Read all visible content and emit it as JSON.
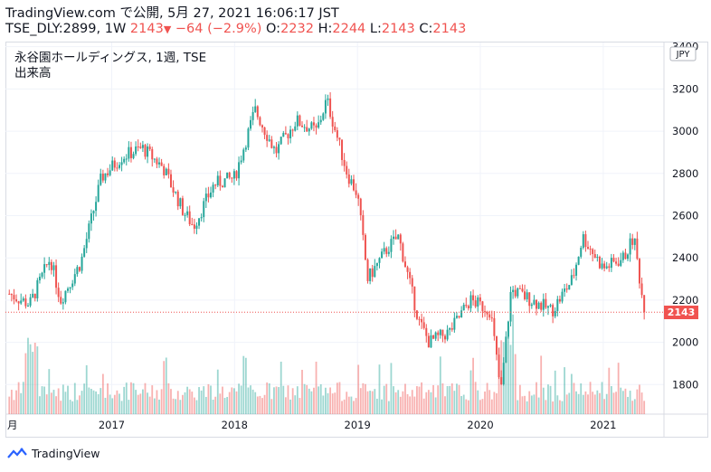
{
  "header": {
    "line1": "TradingView.com で公開, 5月 27, 2021 16:06:17 JST",
    "symbol": "TSE_DLY:2899, 1W",
    "last": "2143",
    "change": "−64 (−2.9%)",
    "o_label": "O:",
    "o_value": "2232",
    "h_label": "H:",
    "h_value": "2244",
    "l_label": "L:",
    "l_value": "2143",
    "c_label": "C:",
    "c_value": "2143"
  },
  "legend": {
    "title": "永谷園ホールディングス, 1週, TSE",
    "volume": "出来高"
  },
  "currency": "JPY",
  "price_tag": "2143",
  "footer": {
    "brand": "TradingView"
  },
  "colors": {
    "up": "#26a69a",
    "down": "#ef5350",
    "grid": "#f0f3fa",
    "last_line": "#ef5350"
  },
  "chart_data": {
    "type": "candlestick",
    "x_tick_labels": [
      "月",
      "2017",
      "2018",
      "2019",
      "2020",
      "2021"
    ],
    "y_tick_labels": [
      "1800",
      "2000",
      "2200",
      "2400",
      "2600",
      "2800",
      "3000",
      "3200",
      "3400"
    ],
    "ylim": [
      1660,
      3420
    ],
    "last_price": 2143,
    "weekly_close_path": [
      [
        "2016-03",
        2230
      ],
      [
        "2016-05",
        2180
      ],
      [
        "2016-07",
        2400
      ],
      [
        "2016-08",
        2200
      ],
      [
        "2016-10",
        2380
      ],
      [
        "2016-12",
        2780
      ],
      [
        "2017-02",
        2880
      ],
      [
        "2017-04",
        2920
      ],
      [
        "2017-06",
        2830
      ],
      [
        "2017-08",
        2620
      ],
      [
        "2017-09",
        2550
      ],
      [
        "2017-11",
        2750
      ],
      [
        "2018-01",
        2780
      ],
      [
        "2018-03",
        3100
      ],
      [
        "2018-05",
        2900
      ],
      [
        "2018-07",
        3050
      ],
      [
        "2018-09",
        3000
      ],
      [
        "2018-10",
        3150
      ],
      [
        "2018-12",
        2800
      ],
      [
        "2019-01",
        2700
      ],
      [
        "2019-02",
        2300
      ],
      [
        "2019-04",
        2450
      ],
      [
        "2019-05",
        2500
      ],
      [
        "2019-07",
        2100
      ],
      [
        "2019-08",
        2000
      ],
      [
        "2019-10",
        2050
      ],
      [
        "2019-12",
        2200
      ],
      [
        "2020-02",
        2150
      ],
      [
        "2020-03",
        1760
      ],
      [
        "2020-04",
        2250
      ],
      [
        "2020-06",
        2200
      ],
      [
        "2020-08",
        2150
      ],
      [
        "2020-10",
        2300
      ],
      [
        "2020-11",
        2500
      ],
      [
        "2021-01",
        2350
      ],
      [
        "2021-03",
        2400
      ],
      [
        "2021-04",
        2500
      ],
      [
        "2021-05",
        2143
      ]
    ]
  }
}
